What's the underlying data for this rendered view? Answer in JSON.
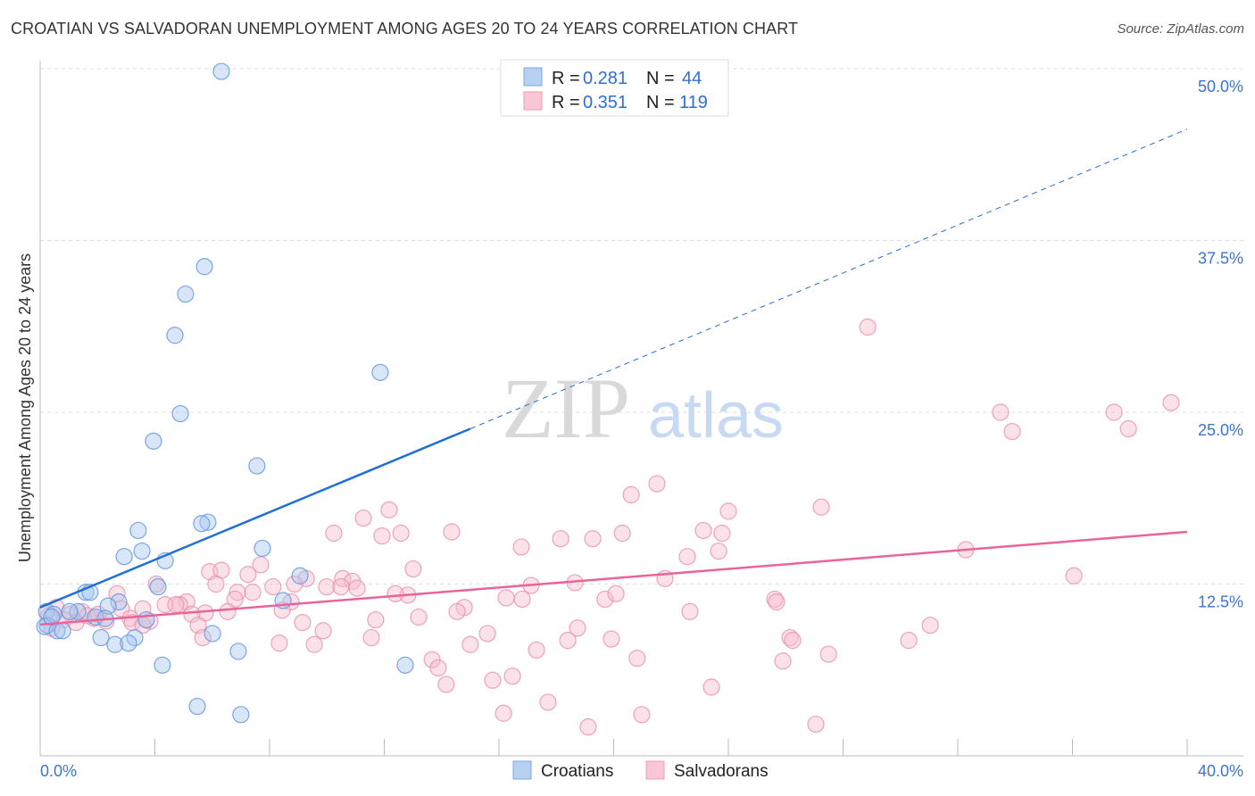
{
  "title": "CROATIAN VS SALVADORAN UNEMPLOYMENT AMONG AGES 20 TO 24 YEARS CORRELATION CHART",
  "source": "Source: ZipAtlas.com",
  "watermark": {
    "zip": "ZIP",
    "atlas": "atlas"
  },
  "colors": {
    "blue": "#5b93e0",
    "blue_fill": "#a8c8f0",
    "blue_line": "#1f6fd6",
    "pink": "#e98fab",
    "pink_fill": "#f7bccd",
    "pink_line": "#e8649a",
    "axis_text": "#3a74d4"
  },
  "legend": {
    "rows": [
      {
        "r_label": "R = ",
        "r": "0.281",
        "n_label": "N = ",
        "n": "44"
      },
      {
        "r_label": "R = ",
        "r": "0.351",
        "n_label": "N = ",
        "n": "119"
      }
    ]
  },
  "chart_data": {
    "type": "scatter",
    "title": "CROATIAN VS SALVADORAN UNEMPLOYMENT AMONG AGES 20 TO 24 YEARS CORRELATION CHART",
    "xlabel": "",
    "ylabel": "Unemployment Among Ages 20 to 24 years",
    "xlim": [
      0,
      40
    ],
    "ylim": [
      0,
      50
    ],
    "x_tick_labels": [
      "0.0%",
      "40.0%"
    ],
    "y_ticks": [
      12.5,
      25.0,
      37.5,
      50.0
    ],
    "y_tick_labels": [
      "12.5%",
      "25.0%",
      "37.5%",
      "50.0%"
    ],
    "grid": true,
    "legend_placement": "top-center",
    "series": [
      {
        "name": "Croatians",
        "R": 0.281,
        "N": 44,
        "trend": {
          "x": [
            0,
            15
          ],
          "y": [
            10.8,
            23.8
          ],
          "dashed_to": [
            40,
            45.6
          ]
        },
        "points": [
          [
            6.32,
            49.8
          ],
          [
            5.73,
            35.6
          ],
          [
            5.07,
            33.6
          ],
          [
            4.7,
            30.6
          ],
          [
            11.86,
            27.9
          ],
          [
            4.89,
            24.9
          ],
          [
            3.95,
            22.9
          ],
          [
            7.56,
            21.1
          ],
          [
            5.85,
            17.0
          ],
          [
            5.63,
            16.9
          ],
          [
            3.42,
            16.4
          ],
          [
            7.75,
            15.1
          ],
          [
            2.93,
            14.5
          ],
          [
            3.55,
            14.9
          ],
          [
            4.36,
            14.2
          ],
          [
            9.06,
            13.1
          ],
          [
            4.11,
            12.3
          ],
          [
            1.59,
            11.9
          ],
          [
            1.74,
            11.9
          ],
          [
            2.74,
            11.2
          ],
          [
            2.37,
            10.9
          ],
          [
            8.47,
            11.3
          ],
          [
            0.22,
            10.5
          ],
          [
            0.47,
            10.3
          ],
          [
            1.31,
            10.5
          ],
          [
            1.03,
            10.5
          ],
          [
            1.93,
            10.1
          ],
          [
            2.27,
            10.0
          ],
          [
            3.7,
            9.9
          ],
          [
            0.25,
            9.5
          ],
          [
            0.16,
            9.4
          ],
          [
            0.59,
            9.1
          ],
          [
            0.78,
            9.1
          ],
          [
            2.12,
            8.6
          ],
          [
            3.3,
            8.6
          ],
          [
            6.01,
            8.9
          ],
          [
            2.61,
            8.1
          ],
          [
            3.08,
            8.2
          ],
          [
            6.91,
            7.6
          ],
          [
            4.26,
            6.6
          ],
          [
            12.73,
            6.6
          ],
          [
            5.48,
            3.6
          ],
          [
            7.0,
            3.0
          ],
          [
            0.4,
            10.1
          ]
        ]
      },
      {
        "name": "Salvadorans",
        "R": 0.351,
        "N": 119,
        "trend": {
          "x": [
            0,
            40
          ],
          "y": [
            9.55,
            16.3
          ]
        },
        "points": [
          [
            28.86,
            31.2
          ],
          [
            39.44,
            25.7
          ],
          [
            33.49,
            25.0
          ],
          [
            37.45,
            25.0
          ],
          [
            33.9,
            23.6
          ],
          [
            37.95,
            23.8
          ],
          [
            21.51,
            19.8
          ],
          [
            20.61,
            19.0
          ],
          [
            27.24,
            18.1
          ],
          [
            24.0,
            17.8
          ],
          [
            12.17,
            17.9
          ],
          [
            11.27,
            17.3
          ],
          [
            10.24,
            16.2
          ],
          [
            12.58,
            16.2
          ],
          [
            14.35,
            16.3
          ],
          [
            11.92,
            16.0
          ],
          [
            16.78,
            15.2
          ],
          [
            18.15,
            15.8
          ],
          [
            19.27,
            15.8
          ],
          [
            20.3,
            16.2
          ],
          [
            23.13,
            16.4
          ],
          [
            23.78,
            16.2
          ],
          [
            23.66,
            14.9
          ],
          [
            32.28,
            15.0
          ],
          [
            22.57,
            14.5
          ],
          [
            36.05,
            13.1
          ],
          [
            13.01,
            13.6
          ],
          [
            7.69,
            13.9
          ],
          [
            7.25,
            13.2
          ],
          [
            5.91,
            13.4
          ],
          [
            6.32,
            13.5
          ],
          [
            9.28,
            12.9
          ],
          [
            10.55,
            12.9
          ],
          [
            10.89,
            12.7
          ],
          [
            9.99,
            12.3
          ],
          [
            10.49,
            12.3
          ],
          [
            11.05,
            12.2
          ],
          [
            8.87,
            12.5
          ],
          [
            8.12,
            12.3
          ],
          [
            6.13,
            12.5
          ],
          [
            17.12,
            12.4
          ],
          [
            18.65,
            12.6
          ],
          [
            21.79,
            12.9
          ],
          [
            7.41,
            11.9
          ],
          [
            6.88,
            11.9
          ],
          [
            12.82,
            11.7
          ],
          [
            12.39,
            11.8
          ],
          [
            16.25,
            11.5
          ],
          [
            16.81,
            11.4
          ],
          [
            19.7,
            11.4
          ],
          [
            20.08,
            11.8
          ],
          [
            25.62,
            11.4
          ],
          [
            25.68,
            11.2
          ],
          [
            2.68,
            11.8
          ],
          [
            4.05,
            12.5
          ],
          [
            8.75,
            11.2
          ],
          [
            6.79,
            11.4
          ],
          [
            5.11,
            11.2
          ],
          [
            4.86,
            11.0
          ],
          [
            4.36,
            11.0
          ],
          [
            4.73,
            11.0
          ],
          [
            2.83,
            10.7
          ],
          [
            3.58,
            10.7
          ],
          [
            8.44,
            10.6
          ],
          [
            14.79,
            10.8
          ],
          [
            14.54,
            10.5
          ],
          [
            22.66,
            10.5
          ],
          [
            5.76,
            10.4
          ],
          [
            6.54,
            10.5
          ],
          [
            5.29,
            10.3
          ],
          [
            3.14,
            10.0
          ],
          [
            1.87,
            10.0
          ],
          [
            2.3,
            9.8
          ],
          [
            3.21,
            9.7
          ],
          [
            0.56,
            10.8
          ],
          [
            1.46,
            10.5
          ],
          [
            1.06,
            10.3
          ],
          [
            13.2,
            10.1
          ],
          [
            11.7,
            9.9
          ],
          [
            9.15,
            9.7
          ],
          [
            5.51,
            9.5
          ],
          [
            3.83,
            9.8
          ],
          [
            3.58,
            9.5
          ],
          [
            31.04,
            9.5
          ],
          [
            18.74,
            9.3
          ],
          [
            15.6,
            8.9
          ],
          [
            9.87,
            9.1
          ],
          [
            26.15,
            8.6
          ],
          [
            26.24,
            8.4
          ],
          [
            5.67,
            8.6
          ],
          [
            8.34,
            8.2
          ],
          [
            9.56,
            8.1
          ],
          [
            11.55,
            8.6
          ],
          [
            15.0,
            8.1
          ],
          [
            18.4,
            8.4
          ],
          [
            19.92,
            8.5
          ],
          [
            30.29,
            8.4
          ],
          [
            17.31,
            7.7
          ],
          [
            27.49,
            7.4
          ],
          [
            13.67,
            7.0
          ],
          [
            25.9,
            6.9
          ],
          [
            20.82,
            7.1
          ],
          [
            13.88,
            6.4
          ],
          [
            15.78,
            5.5
          ],
          [
            16.47,
            5.8
          ],
          [
            14.16,
            5.2
          ],
          [
            23.41,
            5.0
          ],
          [
            17.71,
            3.9
          ],
          [
            16.16,
            3.1
          ],
          [
            20.98,
            3.0
          ],
          [
            19.11,
            2.1
          ],
          [
            27.05,
            2.3
          ],
          [
            0.84,
            9.9
          ],
          [
            0.31,
            10.2
          ],
          [
            1.65,
            10.2
          ],
          [
            2.02,
            10.3
          ],
          [
            1.25,
            9.7
          ],
          [
            0.4,
            9.3
          ]
        ]
      }
    ]
  }
}
